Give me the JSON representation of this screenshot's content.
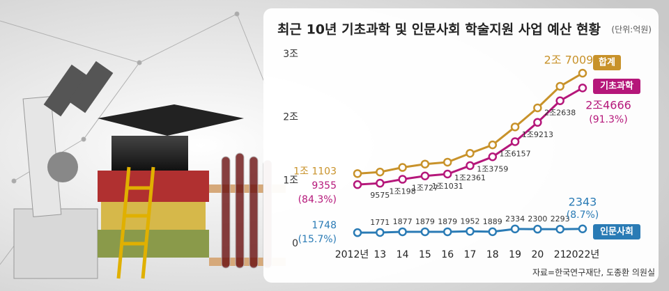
{
  "chart_data": {
    "type": "line",
    "title": "최근 10년 기초과학 및 인문사회 학술지원 사업 예산 현황",
    "unit_note": "(단위:억원)",
    "source": "자료=한국연구재단, 도종환 의원실",
    "categories": [
      "2012년",
      "13",
      "14",
      "15",
      "16",
      "17",
      "18",
      "19",
      "20",
      "21",
      "2022년"
    ],
    "ylim": [
      0,
      30000
    ],
    "yticks": [
      0,
      {
        "value": 10000,
        "label": "1조"
      },
      {
        "value": 20000,
        "label": "2조"
      },
      {
        "value": 30000,
        "label": "3조"
      }
    ],
    "series": [
      {
        "name": "합계",
        "color": "#c8922a",
        "values": [
          11103,
          11346,
          12075,
          12606,
          12910,
          14313,
          15648,
          18491,
          21513,
          24931,
          27009
        ],
        "value_labels": [
          "1조 1103",
          null,
          null,
          null,
          null,
          null,
          null,
          null,
          null,
          null,
          "2조 7009"
        ]
      },
      {
        "name": "기초과학",
        "color": "#b5177a",
        "values": [
          9355,
          9575,
          10198,
          10727,
          11031,
          12361,
          13759,
          16157,
          19213,
          22638,
          24666
        ],
        "value_labels": [
          "9355",
          "9575",
          "1조198",
          "1조727",
          "1조1031",
          "1조2361",
          "1조3759",
          "1조6157",
          "1조9213",
          "2조2638",
          "2조4666"
        ],
        "shares": [
          "(84.3%)",
          "(91.3%)"
        ]
      },
      {
        "name": "인문사회",
        "color": "#2a7bb5",
        "values": [
          1748,
          1771,
          1877,
          1879,
          1879,
          1952,
          1889,
          2334,
          2300,
          2293,
          2343
        ],
        "shares": [
          "(15.7%)",
          "(8.7%)"
        ]
      }
    ]
  }
}
